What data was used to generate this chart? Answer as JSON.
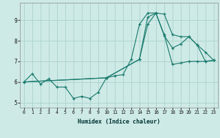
{
  "xlabel": "Humidex (Indice chaleur)",
  "ylabel": "",
  "background_color": "#ceeae6",
  "grid_color": "#aed4d0",
  "line_color": "#1a7a6e",
  "xlim": [
    -0.5,
    23.5
  ],
  "ylim": [
    4.75,
    9.85
  ],
  "xticks": [
    0,
    1,
    2,
    3,
    4,
    5,
    6,
    7,
    8,
    9,
    10,
    11,
    12,
    13,
    14,
    15,
    16,
    17,
    18,
    19,
    20,
    21,
    22,
    23
  ],
  "yticks": [
    5,
    6,
    7,
    8,
    9
  ],
  "line1_x": [
    0,
    1,
    2,
    3,
    4,
    5,
    6,
    7,
    8,
    9,
    10,
    11,
    12,
    13,
    14,
    15,
    16,
    17,
    18,
    19,
    20,
    21,
    22,
    23
  ],
  "line1_y": [
    6.0,
    6.4,
    5.9,
    6.15,
    5.75,
    5.75,
    5.2,
    5.3,
    5.2,
    5.5,
    6.2,
    6.3,
    6.35,
    7.1,
    8.8,
    9.35,
    9.35,
    9.3,
    8.3,
    8.2,
    8.2,
    7.8,
    7.0,
    7.05
  ],
  "line2_x": [
    0,
    10,
    14,
    15,
    16,
    17,
    18,
    19,
    20,
    21,
    22,
    23
  ],
  "line2_y": [
    6.0,
    6.2,
    7.1,
    9.15,
    9.35,
    8.3,
    6.85,
    6.92,
    7.0,
    7.0,
    7.0,
    7.05
  ],
  "line3_x": [
    0,
    10,
    14,
    15,
    16,
    17,
    18,
    19,
    20,
    21,
    22,
    23
  ],
  "line3_y": [
    6.0,
    6.2,
    7.1,
    8.8,
    9.35,
    8.25,
    7.65,
    7.85,
    8.2,
    7.8,
    7.45,
    7.05
  ]
}
